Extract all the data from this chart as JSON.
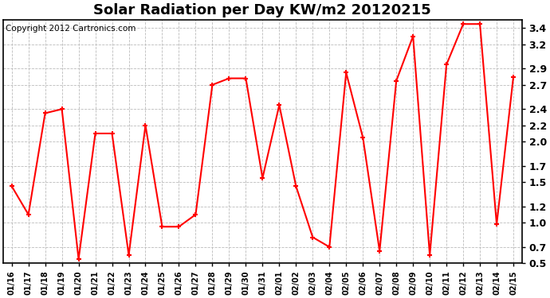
{
  "title": "Solar Radiation per Day KW/m2 20120215",
  "copyright": "Copyright 2012 Cartronics.com",
  "dates": [
    "01/16",
    "01/17",
    "01/18",
    "01/19",
    "01/20",
    "01/21",
    "01/22",
    "01/23",
    "01/24",
    "01/25",
    "01/26",
    "01/27",
    "01/28",
    "01/29",
    "01/30",
    "01/31",
    "02/01",
    "02/02",
    "02/03",
    "02/04",
    "02/05",
    "02/06",
    "02/07",
    "02/08",
    "02/09",
    "02/10",
    "02/11",
    "02/12",
    "02/13",
    "02/14",
    "02/15"
  ],
  "values": [
    1.45,
    1.1,
    2.35,
    2.4,
    0.55,
    2.1,
    2.1,
    0.6,
    2.2,
    0.95,
    0.95,
    1.1,
    2.7,
    2.78,
    2.78,
    1.55,
    2.45,
    1.45,
    0.82,
    0.7,
    2.85,
    2.05,
    0.65,
    2.75,
    3.3,
    0.6,
    2.95,
    3.45,
    3.45,
    0.98,
    2.8
  ],
  "line_color": "#ff0000",
  "ylim": [
    0.5,
    3.5
  ],
  "yticks": [
    3.4,
    3.2,
    2.9,
    2.7,
    2.4,
    2.2,
    2.0,
    1.7,
    1.5,
    1.2,
    1.0,
    0.7,
    0.5
  ],
  "background_color": "#ffffff",
  "grid_color": "#bbbbbb",
  "title_fontsize": 13,
  "tick_fontsize": 9,
  "copyright_fontsize": 7.5
}
